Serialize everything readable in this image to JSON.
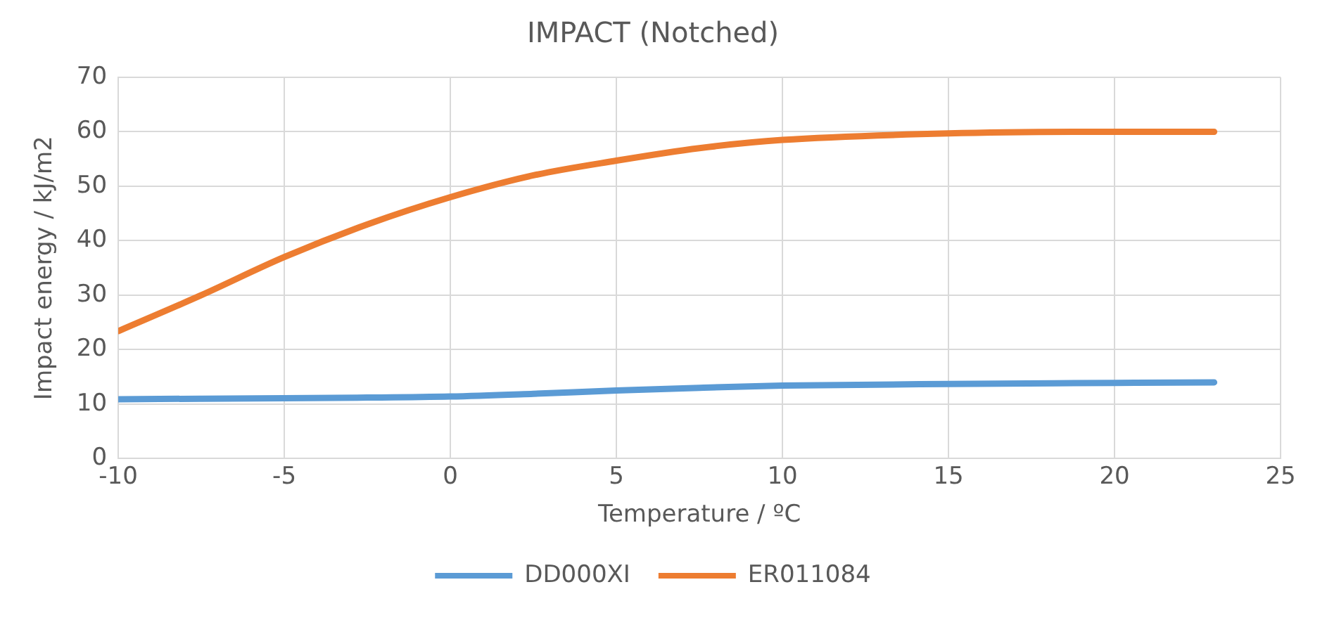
{
  "chart_data": {
    "type": "line",
    "title": "IMPACT (Notched)",
    "xlabel": "Temperature / ºC",
    "ylabel": "Impact energy / kJ/m2",
    "x": [
      -10,
      -7.5,
      -5,
      -2.5,
      0,
      2.5,
      5,
      7.5,
      10,
      15,
      20,
      23
    ],
    "series": [
      {
        "name": "DD000XI",
        "color": "#5b9bd5",
        "values": [
          10.9,
          11,
          11.1,
          11.2,
          11.4,
          11.9,
          12.5,
          13,
          13.4,
          13.7,
          13.9,
          14
        ]
      },
      {
        "name": "ER011084",
        "color": "#ed7d31",
        "values": [
          23.4,
          30,
          37,
          43,
          48,
          52,
          54.7,
          57,
          58.5,
          59.7,
          60,
          60
        ]
      }
    ],
    "xlim": [
      -10,
      25
    ],
    "xticks": [
      -10,
      -5,
      0,
      5,
      10,
      15,
      20,
      25
    ],
    "ylim": [
      0,
      70
    ],
    "yticks": [
      0,
      10,
      20,
      30,
      40,
      50,
      60,
      70
    ],
    "grid": true,
    "legend": "bottom",
    "marker": "none",
    "line_style": "solid"
  }
}
